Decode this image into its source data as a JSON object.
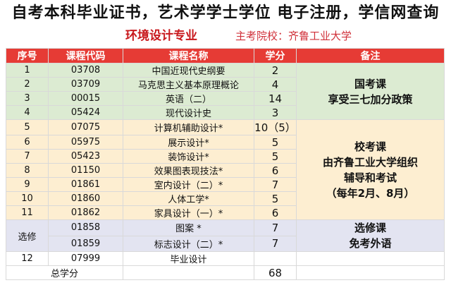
{
  "header": {
    "headline": "自考本科毕业证书，艺术学学士学位 电子注册，学信网查询",
    "major": "环境设计专业",
    "school": "主考院校：齐鲁工业大学"
  },
  "table": {
    "columns": [
      "序号",
      "课程代码",
      "课程名称",
      "学分",
      "备注"
    ],
    "rows": [
      {
        "no": "1",
        "code": "03708",
        "name": "中国近现代史纲要",
        "credit": "2"
      },
      {
        "no": "2",
        "code": "03709",
        "name": "马克思主义基本原理概论",
        "credit": "4"
      },
      {
        "no": "3",
        "code": "00015",
        "name": "英语（二）",
        "credit": "14"
      },
      {
        "no": "4",
        "code": "05424",
        "name": "现代设计史",
        "credit": "3"
      },
      {
        "no": "5",
        "code": "07075",
        "name": "计算机辅助设计*",
        "credit": "10（5）"
      },
      {
        "no": "6",
        "code": "05975",
        "name": "展示设计*",
        "credit": "5"
      },
      {
        "no": "7",
        "code": "05423",
        "name": "装饰设计*",
        "credit": "5"
      },
      {
        "no": "8",
        "code": "01150",
        "name": "效果图表现技法*",
        "credit": "6"
      },
      {
        "no": "9",
        "code": "01861",
        "name": "室内设计（二）*",
        "credit": "7"
      },
      {
        "no": "10",
        "code": "01860",
        "name": "人体工学*",
        "credit": "5"
      },
      {
        "no": "11",
        "code": "01862",
        "name": "家具设计（一）*",
        "credit": "6"
      },
      {
        "no": "选修",
        "code": "01858",
        "name": "图案 *",
        "credit": "7"
      },
      {
        "no": "",
        "code": "01859",
        "name": "标志设计（二）*",
        "credit": "7"
      },
      {
        "no": "12",
        "code": "07999",
        "name": "毕业设计",
        "credit": ""
      }
    ],
    "notes": {
      "national": "国考课\n享受三七加分政策",
      "school_exam": "校考课\n由齐鲁工业大学组织\n辅导和考试\n（每年2月、8月）",
      "elective": "选修课\n免考外语"
    },
    "total_label": "总学分",
    "total_value": "68"
  },
  "colors": {
    "header_red": "#e63b35",
    "green_group": "#dcebd2",
    "yellow_group": "#fdeed1",
    "purple_group": "#e3e4f1"
  }
}
